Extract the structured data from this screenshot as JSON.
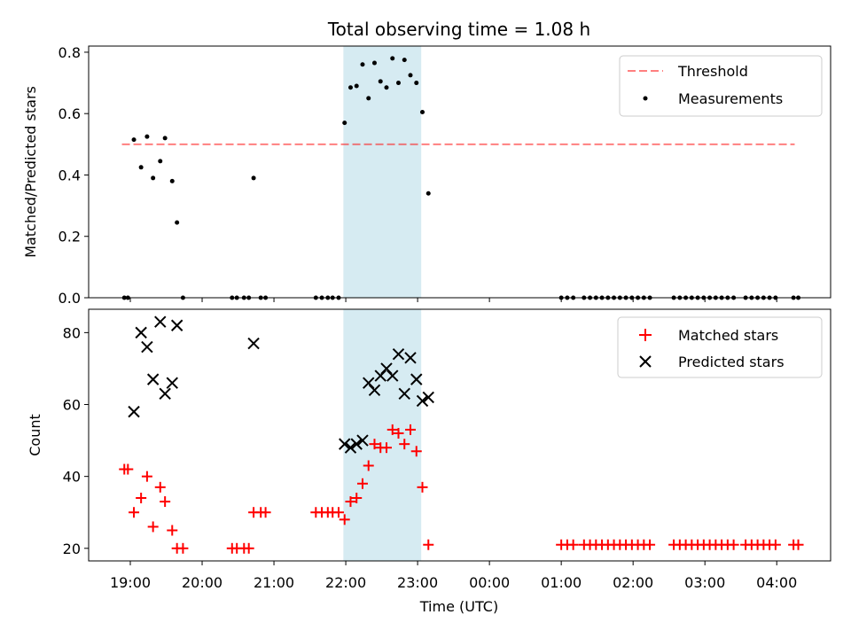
{
  "chart_data": {
    "title": "Total observing time = 1.08 h",
    "xlabel": "Time (UTC)",
    "x_tick_labels": [
      "19:00",
      "20:00",
      "21:00",
      "22:00",
      "23:00",
      "00:00",
      "01:00",
      "02:00",
      "03:00",
      "04:00"
    ],
    "x_ticks_hours": [
      0,
      1,
      2,
      3,
      4,
      5,
      6,
      7,
      8,
      9
    ],
    "x_range_hours_after_1900": [
      -0.58,
      9.75
    ],
    "highlight_span": {
      "start": "21:58",
      "end": "23:03",
      "color": "#add8e6"
    },
    "panels": [
      {
        "type": "scatter",
        "ylabel": "Matched/Predicted stars",
        "ylim": [
          0,
          0.82
        ],
        "yticks": [
          0.0,
          0.2,
          0.4,
          0.6,
          0.8
        ],
        "y_tick_labels": [
          "0.0",
          "0.2",
          "0.4",
          "0.6",
          "0.8"
        ],
        "threshold": {
          "name": "Threshold",
          "value": 0.5,
          "x_start": "18:53",
          "x_end": "04:15",
          "color": "#ff0000",
          "alpha": 0.5
        },
        "legend_position": "top-right",
        "series": [
          {
            "name": "Measurements",
            "marker": "dot",
            "color": "#000000",
            "points": [
              [
                "18:55",
                0.0
              ],
              [
                "18:58",
                0.0
              ],
              [
                "19:03",
                0.515
              ],
              [
                "19:09",
                0.425
              ],
              [
                "19:14",
                0.525
              ],
              [
                "19:19",
                0.39
              ],
              [
                "19:25",
                0.445
              ],
              [
                "19:29",
                0.52
              ],
              [
                "19:35",
                0.38
              ],
              [
                "19:39",
                0.245
              ],
              [
                "19:44",
                0.0
              ],
              [
                "20:25",
                0.0
              ],
              [
                "20:29",
                0.0
              ],
              [
                "20:35",
                0.0
              ],
              [
                "20:39",
                0.0
              ],
              [
                "20:43",
                0.39
              ],
              [
                "20:49",
                0.0
              ],
              [
                "20:53",
                0.0
              ],
              [
                "21:35",
                0.0
              ],
              [
                "21:40",
                0.0
              ],
              [
                "21:45",
                0.0
              ],
              [
                "21:49",
                0.0
              ],
              [
                "21:54",
                0.0
              ],
              [
                "21:59",
                0.57
              ],
              [
                "22:04",
                0.685
              ],
              [
                "22:09",
                0.69
              ],
              [
                "22:14",
                0.76
              ],
              [
                "22:19",
                0.65
              ],
              [
                "22:24",
                0.765
              ],
              [
                "22:29",
                0.705
              ],
              [
                "22:34",
                0.685
              ],
              [
                "22:39",
                0.78
              ],
              [
                "22:44",
                0.7
              ],
              [
                "22:49",
                0.775
              ],
              [
                "22:54",
                0.725
              ],
              [
                "22:59",
                0.7
              ],
              [
                "23:04",
                0.605
              ],
              [
                "23:09",
                0.34
              ],
              [
                "01:00",
                0.0
              ],
              [
                "01:05",
                0.0
              ],
              [
                "01:10",
                0.0
              ],
              [
                "01:19",
                0.0
              ],
              [
                "01:24",
                0.0
              ],
              [
                "01:29",
                0.0
              ],
              [
                "01:34",
                0.0
              ],
              [
                "01:39",
                0.0
              ],
              [
                "01:44",
                0.0
              ],
              [
                "01:49",
                0.0
              ],
              [
                "01:54",
                0.0
              ],
              [
                "01:59",
                0.0
              ],
              [
                "02:04",
                0.0
              ],
              [
                "02:09",
                0.0
              ],
              [
                "02:14",
                0.0
              ],
              [
                "02:34",
                0.0
              ],
              [
                "02:39",
                0.0
              ],
              [
                "02:44",
                0.0
              ],
              [
                "02:49",
                0.0
              ],
              [
                "02:54",
                0.0
              ],
              [
                "02:59",
                0.0
              ],
              [
                "03:04",
                0.0
              ],
              [
                "03:09",
                0.0
              ],
              [
                "03:14",
                0.0
              ],
              [
                "03:19",
                0.0
              ],
              [
                "03:24",
                0.0
              ],
              [
                "03:34",
                0.0
              ],
              [
                "03:39",
                0.0
              ],
              [
                "03:44",
                0.0
              ],
              [
                "03:49",
                0.0
              ],
              [
                "03:54",
                0.0
              ],
              [
                "03:59",
                0.0
              ],
              [
                "04:14",
                0.0
              ],
              [
                "04:18",
                0.0
              ]
            ]
          }
        ]
      },
      {
        "type": "scatter",
        "ylabel": "Count",
        "ylim": [
          16.5,
          86.5
        ],
        "yticks": [
          20,
          40,
          60,
          80
        ],
        "y_tick_labels": [
          "20",
          "40",
          "60",
          "80"
        ],
        "legend_position": "top-right",
        "series": [
          {
            "name": "Matched stars",
            "marker": "plus",
            "color": "#ff0000",
            "points": [
              [
                "18:55",
                42
              ],
              [
                "18:58",
                42
              ],
              [
                "19:03",
                30
              ],
              [
                "19:09",
                34
              ],
              [
                "19:14",
                40
              ],
              [
                "19:19",
                26
              ],
              [
                "19:25",
                37
              ],
              [
                "19:29",
                33
              ],
              [
                "19:35",
                25
              ],
              [
                "19:39",
                20
              ],
              [
                "19:44",
                20
              ],
              [
                "20:25",
                20
              ],
              [
                "20:29",
                20
              ],
              [
                "20:35",
                20
              ],
              [
                "20:39",
                20
              ],
              [
                "20:43",
                30
              ],
              [
                "20:49",
                30
              ],
              [
                "20:53",
                30
              ],
              [
                "21:35",
                30
              ],
              [
                "21:40",
                30
              ],
              [
                "21:45",
                30
              ],
              [
                "21:49",
                30
              ],
              [
                "21:54",
                30
              ],
              [
                "21:59",
                28
              ],
              [
                "22:04",
                33
              ],
              [
                "22:09",
                34
              ],
              [
                "22:14",
                38
              ],
              [
                "22:19",
                43
              ],
              [
                "22:24",
                49
              ],
              [
                "22:29",
                48
              ],
              [
                "22:34",
                48
              ],
              [
                "22:39",
                53
              ],
              [
                "22:44",
                52
              ],
              [
                "22:49",
                49
              ],
              [
                "22:54",
                53
              ],
              [
                "22:59",
                47
              ],
              [
                "23:04",
                37
              ],
              [
                "23:09",
                21
              ],
              [
                "01:00",
                21
              ],
              [
                "01:05",
                21
              ],
              [
                "01:10",
                21
              ],
              [
                "01:19",
                21
              ],
              [
                "01:24",
                21
              ],
              [
                "01:29",
                21
              ],
              [
                "01:34",
                21
              ],
              [
                "01:39",
                21
              ],
              [
                "01:44",
                21
              ],
              [
                "01:49",
                21
              ],
              [
                "01:54",
                21
              ],
              [
                "01:59",
                21
              ],
              [
                "02:04",
                21
              ],
              [
                "02:09",
                21
              ],
              [
                "02:14",
                21
              ],
              [
                "02:34",
                21
              ],
              [
                "02:39",
                21
              ],
              [
                "02:44",
                21
              ],
              [
                "02:49",
                21
              ],
              [
                "02:54",
                21
              ],
              [
                "02:59",
                21
              ],
              [
                "03:04",
                21
              ],
              [
                "03:09",
                21
              ],
              [
                "03:14",
                21
              ],
              [
                "03:19",
                21
              ],
              [
                "03:24",
                21
              ],
              [
                "03:34",
                21
              ],
              [
                "03:39",
                21
              ],
              [
                "03:44",
                21
              ],
              [
                "03:49",
                21
              ],
              [
                "03:54",
                21
              ],
              [
                "03:59",
                21
              ],
              [
                "04:14",
                21
              ],
              [
                "04:18",
                21
              ]
            ]
          },
          {
            "name": "Predicted stars",
            "marker": "x",
            "color": "#000000",
            "points": [
              [
                "19:03",
                58
              ],
              [
                "19:09",
                80
              ],
              [
                "19:14",
                76
              ],
              [
                "19:19",
                67
              ],
              [
                "19:25",
                83
              ],
              [
                "19:29",
                63
              ],
              [
                "19:35",
                66
              ],
              [
                "19:39",
                82
              ],
              [
                "20:43",
                77
              ],
              [
                "21:59",
                49
              ],
              [
                "22:04",
                48
              ],
              [
                "22:09",
                49
              ],
              [
                "22:14",
                50
              ],
              [
                "22:19",
                66
              ],
              [
                "22:24",
                64
              ],
              [
                "22:29",
                68
              ],
              [
                "22:34",
                70
              ],
              [
                "22:39",
                68
              ],
              [
                "22:44",
                74
              ],
              [
                "22:49",
                63
              ],
              [
                "22:54",
                73
              ],
              [
                "22:59",
                67
              ],
              [
                "23:04",
                61
              ],
              [
                "23:09",
                62
              ]
            ]
          }
        ]
      }
    ]
  }
}
